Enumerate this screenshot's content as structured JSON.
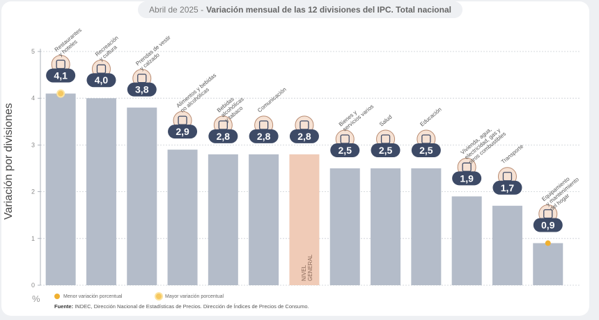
{
  "title": {
    "date": "Abril de 2025 -",
    "text": "Variación mensual de las 12 divisiones del IPC. Total nacional"
  },
  "legend": {
    "min_label": "Menor variación porcentual",
    "max_label": "Mayor variación porcentual"
  },
  "percent_symbol": "%",
  "source": {
    "label": "Fuente:",
    "text": "INDEC, Dirección Nacional de Estadísticas de Precios. Dirección de Índices de Precios de Consumo."
  },
  "colors": {
    "bar": "#b4bcc9",
    "highlight_bar": "#f0cbb7",
    "badge": "#3d4a66",
    "accent": "#f0b030"
  },
  "chart_data": {
    "type": "bar",
    "ylabel": "Variación por divisiones",
    "ylim": [
      0,
      5
    ],
    "yticks": [
      "0",
      "1",
      "2",
      "3",
      "4",
      "5"
    ],
    "grid": true,
    "value_labels": [
      "4,1",
      "4,0",
      "3,8",
      "2,9",
      "2,8",
      "2,8",
      "2,8",
      "2,5",
      "2,5",
      "2,5",
      "1,9",
      "1,7",
      "0,9"
    ],
    "values": [
      4.1,
      4.0,
      3.8,
      2.9,
      2.8,
      2.8,
      2.8,
      2.5,
      2.5,
      2.5,
      1.9,
      1.7,
      0.9
    ],
    "categories": [
      [
        "Restaurantes",
        "y hoteles"
      ],
      [
        "Recreación",
        "y cultura"
      ],
      [
        "Prendas de vestir",
        "y calzado"
      ],
      [
        "Alimentos y bebidas",
        "no alcohólicas"
      ],
      [
        "Bebidas",
        "alcohólicas",
        "y tabaco"
      ],
      [
        "Comunicación"
      ],
      [
        "NIVEL",
        "GENERAL"
      ],
      [
        "Bienes y",
        "servicios varios"
      ],
      [
        "Salud"
      ],
      [
        "Educación"
      ],
      [
        "Vivienda, agua,",
        "electricidad, gas y",
        "otros combustibles"
      ],
      [
        "Transporte"
      ],
      [
        "Equipamiento",
        "y mantenimiento",
        "del hogar"
      ]
    ],
    "icons": [
      "restaurant-icon",
      "recreation-icon",
      "clothing-icon",
      "food-icon",
      "beverages-icon",
      "phone-icon",
      "basket-icon",
      "scissors-comb-icon",
      "health-cross-icon",
      "book-icon",
      "light-bulb-icon",
      "bus-icon",
      "appliance-icon"
    ],
    "highlight_index": 6,
    "max_marker_index": 0,
    "min_marker_index": 12
  }
}
